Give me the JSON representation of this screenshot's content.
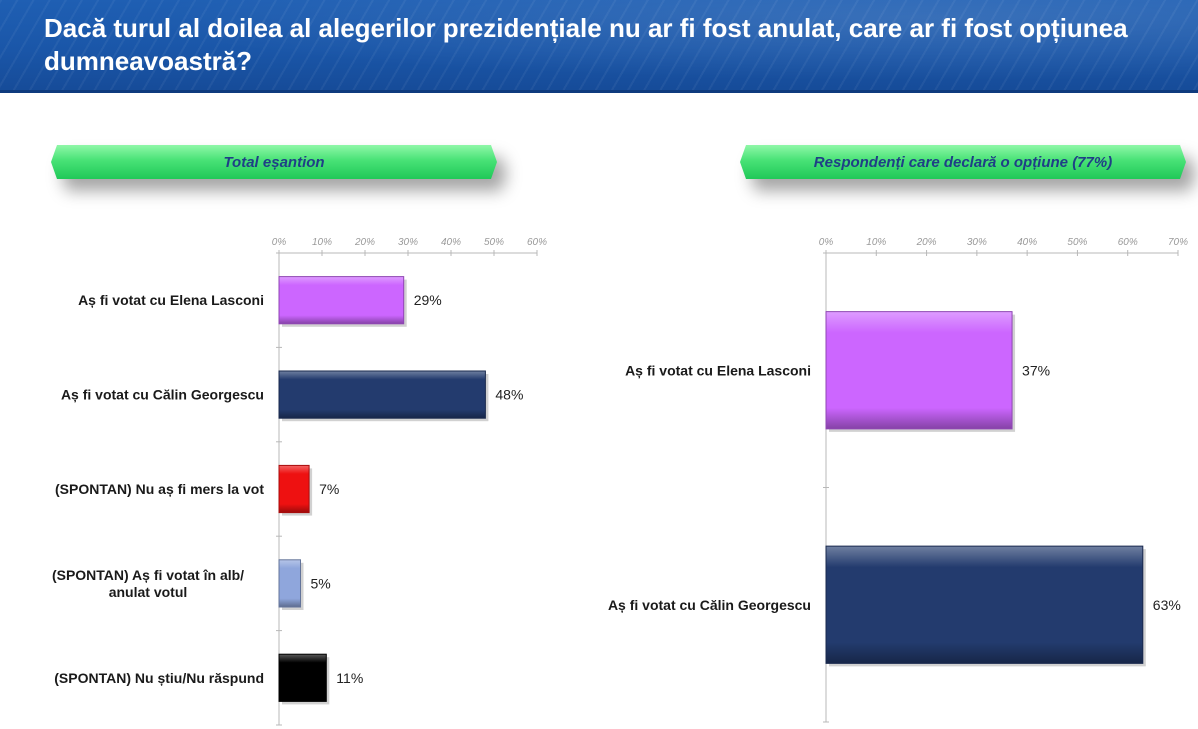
{
  "header": {
    "title": "Dacă turul al doilea al alegerilor prezidențiale nu ar fi fost anulat, care ar fi fost opțiunea dumneavoastră?"
  },
  "colors": {
    "lasconi": "#cc66ff",
    "georgescu": "#233b6e",
    "nu_merg": "#ee1111",
    "alb": "#8fa6dc",
    "nu_stiu": "#000000"
  },
  "chart_data": [
    {
      "type": "bar",
      "orientation": "horizontal",
      "title": "Total eșantion",
      "xlim": [
        0,
        60
      ],
      "ticks": [
        "0%",
        "10%",
        "20%",
        "30%",
        "40%",
        "50%",
        "60%"
      ],
      "tick_values": [
        0,
        10,
        20,
        30,
        40,
        50,
        60
      ],
      "categories": [
        "Aș fi votat cu Elena Lasconi",
        "Aș fi votat cu Călin Georgescu",
        "(SPONTAN) Nu aș fi mers la vot",
        [
          "(SPONTAN) Aș fi votat în alb/",
          "anulat votul"
        ],
        "(SPONTAN) Nu știu/Nu răspund"
      ],
      "values": [
        29,
        48,
        7,
        5,
        11
      ],
      "value_labels": [
        "29%",
        "48%",
        "7%",
        "5%",
        "11%"
      ],
      "bar_colors": [
        "#cc66ff",
        "#233b6e",
        "#ee1111",
        "#8fa6dc",
        "#000000"
      ]
    },
    {
      "type": "bar",
      "orientation": "horizontal",
      "title": "Respondenți care declară o opțiune (77%)",
      "xlim": [
        0,
        70
      ],
      "ticks": [
        "0%",
        "10%",
        "20%",
        "30%",
        "40%",
        "50%",
        "60%",
        "70%"
      ],
      "tick_values": [
        0,
        10,
        20,
        30,
        40,
        50,
        60,
        70
      ],
      "categories": [
        "Aș fi votat cu Elena Lasconi",
        "Aș fi votat cu Călin Georgescu"
      ],
      "values": [
        37,
        63
      ],
      "value_labels": [
        "37%",
        "63%"
      ],
      "bar_colors": [
        "#cc66ff",
        "#233b6e"
      ]
    }
  ]
}
